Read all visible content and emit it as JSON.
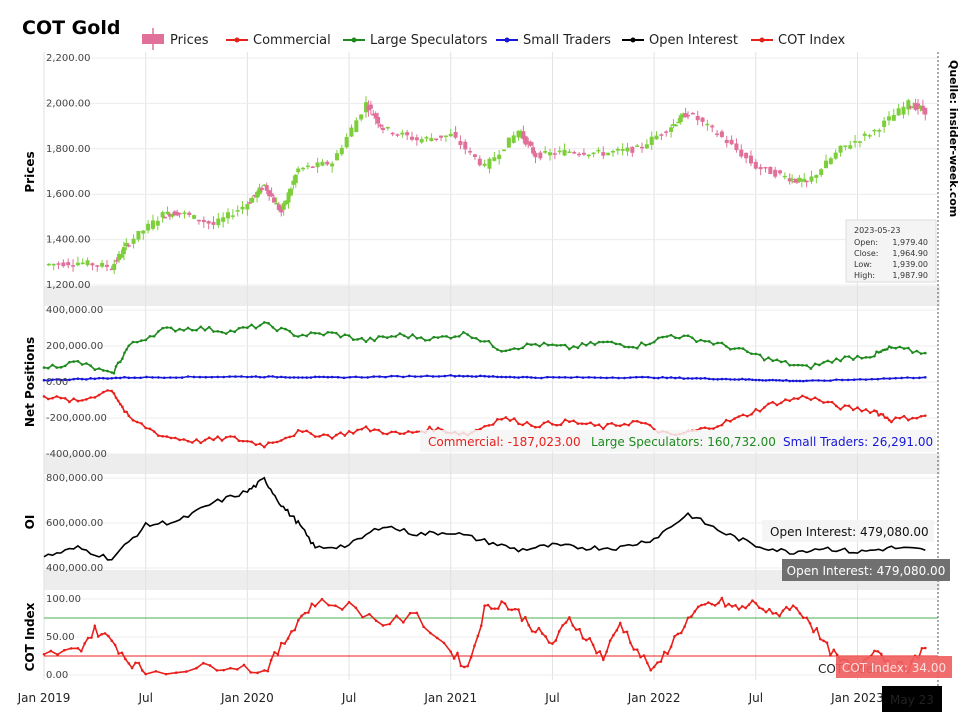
{
  "chart_data": {
    "type": "line",
    "title": "COT Gold",
    "source": "Quelle: insider-week.com",
    "legend": [
      {
        "name": "Prices",
        "color": "#e0709a"
      },
      {
        "name": "Commercial",
        "color": "#e8201c"
      },
      {
        "name": "Large Speculators",
        "color": "#1e8a1e"
      },
      {
        "name": "Small Traders",
        "color": "#1717d9"
      },
      {
        "name": "Open Interest",
        "color": "#000000"
      },
      {
        "name": "COT Index",
        "color": "#e8201c"
      }
    ],
    "x_ticks": [
      "Jan 2019",
      "Jul",
      "Jan 2020",
      "Jul",
      "Jan 2021",
      "Jul",
      "Jan 2022",
      "Jul",
      "Jan 2023"
    ],
    "x_badge": "May 23",
    "panels": {
      "prices": {
        "ylabel": "Prices",
        "yticks": [
          "2,200.00",
          "2,000.00",
          "1,800.00",
          "1,600.00",
          "1,400.00",
          "1,200.00"
        ],
        "ylim": [
          1200,
          2200
        ],
        "series_keypoints": [
          {
            "date": "2019-01",
            "value": 1290
          },
          {
            "date": "2019-03",
            "value": 1300
          },
          {
            "date": "2019-05",
            "value": 1280
          },
          {
            "date": "2019-06",
            "value": 1390
          },
          {
            "date": "2019-08",
            "value": 1510
          },
          {
            "date": "2019-09",
            "value": 1520
          },
          {
            "date": "2019-11",
            "value": 1465
          },
          {
            "date": "2020-01",
            "value": 1560
          },
          {
            "date": "2020-02",
            "value": 1640
          },
          {
            "date": "2020-03",
            "value": 1520
          },
          {
            "date": "2020-04",
            "value": 1710
          },
          {
            "date": "2020-06",
            "value": 1740
          },
          {
            "date": "2020-08",
            "value": 2000
          },
          {
            "date": "2020-09",
            "value": 1890
          },
          {
            "date": "2020-11",
            "value": 1840
          },
          {
            "date": "2021-01",
            "value": 1860
          },
          {
            "date": "2021-03",
            "value": 1720
          },
          {
            "date": "2021-05",
            "value": 1880
          },
          {
            "date": "2021-06",
            "value": 1770
          },
          {
            "date": "2021-08",
            "value": 1790
          },
          {
            "date": "2021-10",
            "value": 1780
          },
          {
            "date": "2021-12",
            "value": 1800
          },
          {
            "date": "2022-02",
            "value": 1900
          },
          {
            "date": "2022-03",
            "value": 1960
          },
          {
            "date": "2022-05",
            "value": 1850
          },
          {
            "date": "2022-07",
            "value": 1720
          },
          {
            "date": "2022-09",
            "value": 1670
          },
          {
            "date": "2022-10",
            "value": 1650
          },
          {
            "date": "2022-12",
            "value": 1800
          },
          {
            "date": "2023-02",
            "value": 1880
          },
          {
            "date": "2023-04",
            "value": 2000
          },
          {
            "date": "2023-05",
            "value": 1965
          }
        ],
        "tooltip": {
          "date": "2023-05-23",
          "rows": [
            {
              "label": "Open:",
              "value": "1,979.40"
            },
            {
              "label": "Close:",
              "value": "1,964.90"
            },
            {
              "label": "Low:",
              "value": "1,939.00"
            },
            {
              "label": "High:",
              "value": "1,987.90"
            }
          ]
        }
      },
      "net_positions": {
        "ylabel": "Net Positions",
        "yticks": [
          "400,000.00",
          "200,000.00",
          "0.00",
          "-200,000.00",
          "-400,000.00"
        ],
        "ylim": [
          -400000,
          400000
        ],
        "series": [
          {
            "name": "Commercial",
            "points": [
              {
                "date": "2019-01",
                "value": -80000
              },
              {
                "date": "2019-03",
                "value": -110000
              },
              {
                "date": "2019-05",
                "value": -40000
              },
              {
                "date": "2019-06",
                "value": -200000
              },
              {
                "date": "2019-08",
                "value": -300000
              },
              {
                "date": "2019-10",
                "value": -330000
              },
              {
                "date": "2019-12",
                "value": -310000
              },
              {
                "date": "2020-02",
                "value": -350000
              },
              {
                "date": "2020-04",
                "value": -280000
              },
              {
                "date": "2020-06",
                "value": -300000
              },
              {
                "date": "2020-08",
                "value": -260000
              },
              {
                "date": "2020-10",
                "value": -290000
              },
              {
                "date": "2020-12",
                "value": -260000
              },
              {
                "date": "2021-02",
                "value": -290000
              },
              {
                "date": "2021-04",
                "value": -200000
              },
              {
                "date": "2021-06",
                "value": -240000
              },
              {
                "date": "2021-08",
                "value": -220000
              },
              {
                "date": "2021-10",
                "value": -250000
              },
              {
                "date": "2021-12",
                "value": -220000
              },
              {
                "date": "2022-02",
                "value": -300000
              },
              {
                "date": "2022-04",
                "value": -260000
              },
              {
                "date": "2022-06",
                "value": -200000
              },
              {
                "date": "2022-08",
                "value": -120000
              },
              {
                "date": "2022-10",
                "value": -80000
              },
              {
                "date": "2022-12",
                "value": -140000
              },
              {
                "date": "2023-02",
                "value": -160000
              },
              {
                "date": "2023-03",
                "value": -210000
              },
              {
                "date": "2023-05",
                "value": -187023
              }
            ]
          },
          {
            "name": "Large Speculators",
            "points": [
              {
                "date": "2019-01",
                "value": 80000
              },
              {
                "date": "2019-03",
                "value": 110000
              },
              {
                "date": "2019-05",
                "value": 40000
              },
              {
                "date": "2019-06",
                "value": 200000
              },
              {
                "date": "2019-08",
                "value": 290000
              },
              {
                "date": "2019-10",
                "value": 300000
              },
              {
                "date": "2019-12",
                "value": 280000
              },
              {
                "date": "2020-02",
                "value": 320000
              },
              {
                "date": "2020-04",
                "value": 260000
              },
              {
                "date": "2020-06",
                "value": 270000
              },
              {
                "date": "2020-08",
                "value": 230000
              },
              {
                "date": "2020-10",
                "value": 260000
              },
              {
                "date": "2020-12",
                "value": 240000
              },
              {
                "date": "2021-02",
                "value": 270000
              },
              {
                "date": "2021-04",
                "value": 180000
              },
              {
                "date": "2021-06",
                "value": 210000
              },
              {
                "date": "2021-08",
                "value": 190000
              },
              {
                "date": "2021-10",
                "value": 220000
              },
              {
                "date": "2021-12",
                "value": 200000
              },
              {
                "date": "2022-02",
                "value": 260000
              },
              {
                "date": "2022-04",
                "value": 230000
              },
              {
                "date": "2022-06",
                "value": 180000
              },
              {
                "date": "2022-08",
                "value": 120000
              },
              {
                "date": "2022-10",
                "value": 80000
              },
              {
                "date": "2022-12",
                "value": 130000
              },
              {
                "date": "2023-02",
                "value": 150000
              },
              {
                "date": "2023-03",
                "value": 190000
              },
              {
                "date": "2023-05",
                "value": 160732
              }
            ]
          },
          {
            "name": "Small Traders",
            "points": [
              {
                "date": "2019-01",
                "value": 10000
              },
              {
                "date": "2019-06",
                "value": 25000
              },
              {
                "date": "2020-01",
                "value": 30000
              },
              {
                "date": "2020-06",
                "value": 25000
              },
              {
                "date": "2021-01",
                "value": 35000
              },
              {
                "date": "2021-06",
                "value": 25000
              },
              {
                "date": "2022-01",
                "value": 25000
              },
              {
                "date": "2022-06",
                "value": 15000
              },
              {
                "date": "2022-10",
                "value": 5000
              },
              {
                "date": "2023-05",
                "value": 26291
              }
            ]
          }
        ],
        "annotations": [
          {
            "label": "Commercial:",
            "value": "-187,023.00"
          },
          {
            "label": "Large Speculators:",
            "value": "160,732.00"
          },
          {
            "label": "Small Traders:",
            "value": "26,291.00"
          }
        ]
      },
      "open_interest": {
        "ylabel": "OI",
        "yticks": [
          "800,000.00",
          "600,000.00",
          "400,000.00"
        ],
        "ylim": [
          400000,
          800000
        ],
        "points": [
          {
            "date": "2019-01",
            "value": 450000
          },
          {
            "date": "2019-03",
            "value": 490000
          },
          {
            "date": "2019-05",
            "value": 440000
          },
          {
            "date": "2019-07",
            "value": 590000
          },
          {
            "date": "2019-09",
            "value": 610000
          },
          {
            "date": "2019-11",
            "value": 690000
          },
          {
            "date": "2020-01",
            "value": 740000
          },
          {
            "date": "2020-02",
            "value": 795000
          },
          {
            "date": "2020-03",
            "value": 680000
          },
          {
            "date": "2020-04",
            "value": 600000
          },
          {
            "date": "2020-05",
            "value": 490000
          },
          {
            "date": "2020-07",
            "value": 500000
          },
          {
            "date": "2020-09",
            "value": 590000
          },
          {
            "date": "2020-11",
            "value": 550000
          },
          {
            "date": "2021-01",
            "value": 560000
          },
          {
            "date": "2021-03",
            "value": 520000
          },
          {
            "date": "2021-05",
            "value": 480000
          },
          {
            "date": "2021-07",
            "value": 500000
          },
          {
            "date": "2021-09",
            "value": 490000
          },
          {
            "date": "2021-11",
            "value": 490000
          },
          {
            "date": "2022-01",
            "value": 530000
          },
          {
            "date": "2022-03",
            "value": 640000
          },
          {
            "date": "2022-05",
            "value": 560000
          },
          {
            "date": "2022-07",
            "value": 500000
          },
          {
            "date": "2022-09",
            "value": 470000
          },
          {
            "date": "2022-11",
            "value": 490000
          },
          {
            "date": "2023-01",
            "value": 470000
          },
          {
            "date": "2023-03",
            "value": 490000
          },
          {
            "date": "2023-05",
            "value": 479080
          }
        ],
        "annotation": {
          "label": "Open Interest:",
          "value": "479,080.00"
        },
        "badge": "Open Interest: 479,080.00"
      },
      "cot_index": {
        "ylabel": "COT Index",
        "yticks": [
          "100.00",
          "50.00",
          "0.00"
        ],
        "ylim": [
          0,
          100
        ],
        "upper_line": 75,
        "lower_line": 25,
        "points": [
          {
            "date": "2019-01",
            "value": 25
          },
          {
            "date": "2019-03",
            "value": 30
          },
          {
            "date": "2019-04",
            "value": 60
          },
          {
            "date": "2019-05",
            "value": 45
          },
          {
            "date": "2019-06",
            "value": 15
          },
          {
            "date": "2019-07",
            "value": 0
          },
          {
            "date": "2019-10",
            "value": 5
          },
          {
            "date": "2019-12",
            "value": 10
          },
          {
            "date": "2020-02",
            "value": 0
          },
          {
            "date": "2020-03",
            "value": 35
          },
          {
            "date": "2020-04",
            "value": 75
          },
          {
            "date": "2020-05",
            "value": 100
          },
          {
            "date": "2020-07",
            "value": 95
          },
          {
            "date": "2020-09",
            "value": 70
          },
          {
            "date": "2020-11",
            "value": 80
          },
          {
            "date": "2021-01",
            "value": 30
          },
          {
            "date": "2021-02",
            "value": 5
          },
          {
            "date": "2021-03",
            "value": 90
          },
          {
            "date": "2021-04",
            "value": 100
          },
          {
            "date": "2021-05",
            "value": 85
          },
          {
            "date": "2021-06",
            "value": 60
          },
          {
            "date": "2021-07",
            "value": 40
          },
          {
            "date": "2021-08",
            "value": 75
          },
          {
            "date": "2021-09",
            "value": 50
          },
          {
            "date": "2021-10",
            "value": 20
          },
          {
            "date": "2021-11",
            "value": 70
          },
          {
            "date": "2021-12",
            "value": 30
          },
          {
            "date": "2022-01",
            "value": 0
          },
          {
            "date": "2022-02",
            "value": 40
          },
          {
            "date": "2022-03",
            "value": 75
          },
          {
            "date": "2022-04",
            "value": 95
          },
          {
            "date": "2022-05",
            "value": 100
          },
          {
            "date": "2022-06",
            "value": 90
          },
          {
            "date": "2022-07",
            "value": 100
          },
          {
            "date": "2022-08",
            "value": 80
          },
          {
            "date": "2022-09",
            "value": 95
          },
          {
            "date": "2022-10",
            "value": 80
          },
          {
            "date": "2022-11",
            "value": 40
          },
          {
            "date": "2022-12",
            "value": 15
          },
          {
            "date": "2023-01",
            "value": 5
          },
          {
            "date": "2023-02",
            "value": 35
          },
          {
            "date": "2023-03",
            "value": 10
          },
          {
            "date": "2023-04",
            "value": 5
          },
          {
            "date": "2023-05",
            "value": 34
          }
        ],
        "annotation": "COT Index:",
        "badge": "COT Index: 34.00"
      }
    }
  }
}
